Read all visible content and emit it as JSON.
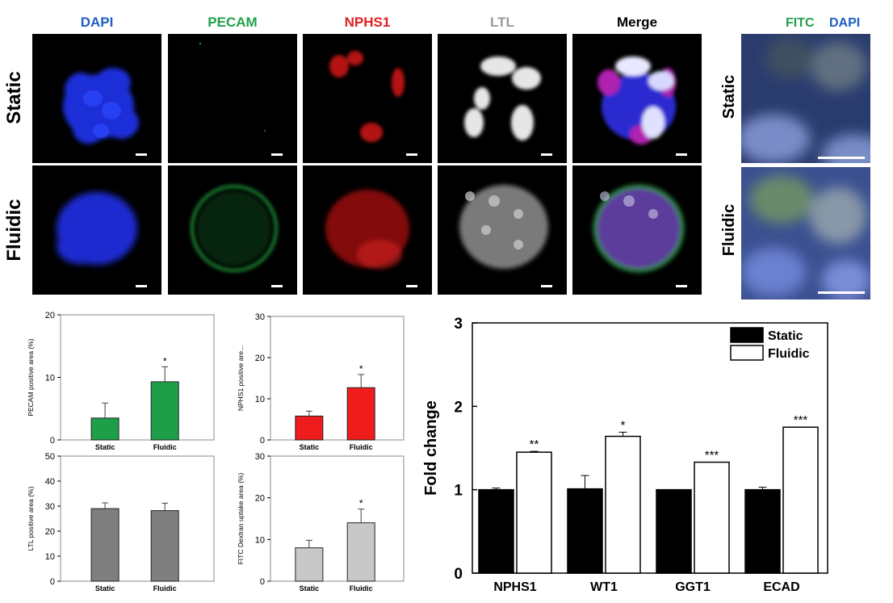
{
  "micrographs": {
    "columns": [
      {
        "label": "DAPI",
        "color": "#1f5fbf"
      },
      {
        "label": "PECAM",
        "color": "#22a04a"
      },
      {
        "label": "NPHS1",
        "color": "#e02020"
      },
      {
        "label": "LTL",
        "color": "#9a9a9a"
      },
      {
        "label": "Merge",
        "color": "#000000"
      }
    ],
    "rows": [
      "Static",
      "Fluidic"
    ],
    "fitc": {
      "label_fitc": "FITC",
      "label_dapi": "DAPI",
      "fitc_color": "#22a04a",
      "dapi_color": "#1f5fbf",
      "rows": [
        "Static",
        "Fluidic"
      ]
    }
  },
  "chart_data": [
    {
      "type": "bar",
      "categories": [
        "Static",
        "Fluidic"
      ],
      "values": [
        3.5,
        9.3
      ],
      "errors": [
        2.4,
        2.4
      ],
      "significance": [
        "",
        "*"
      ],
      "ylabel": "PECAM positive area (%)",
      "ylim": [
        0,
        20
      ],
      "yticks": [
        0,
        10,
        20
      ],
      "color": "#1f9e4a"
    },
    {
      "type": "bar",
      "categories": [
        "Static",
        "Fluidic"
      ],
      "values": [
        5.8,
        12.7
      ],
      "errors": [
        1.2,
        3.2
      ],
      "significance": [
        "",
        "*"
      ],
      "ylabel": "NPHS1 positive are...",
      "ylim": [
        0,
        30
      ],
      "yticks": [
        0,
        10,
        20,
        30
      ],
      "color": "#ee1c1c"
    },
    {
      "type": "bar",
      "categories": [
        "Static",
        "Fluidic"
      ],
      "values": [
        29,
        28.2
      ],
      "errors": [
        2.3,
        3.0
      ],
      "significance": [
        "",
        ""
      ],
      "ylabel": "LTL positive area (%)",
      "ylim": [
        0,
        50
      ],
      "yticks": [
        0,
        10,
        20,
        30,
        40,
        50
      ],
      "color": "#7f7f7f"
    },
    {
      "type": "bar",
      "categories": [
        "Static",
        "Fluidic"
      ],
      "values": [
        8.0,
        14.0
      ],
      "errors": [
        1.8,
        3.3
      ],
      "significance": [
        "",
        "*"
      ],
      "ylabel": "FITC Dextran uptake area (%)",
      "ylim": [
        0,
        30
      ],
      "yticks": [
        0,
        10,
        20,
        30
      ],
      "color": "#c8c8c8"
    },
    {
      "type": "bar",
      "categories": [
        "NPHS1",
        "WT1",
        "GGT1",
        "ECAD"
      ],
      "series": [
        {
          "name": "Static",
          "values": [
            1.0,
            1.01,
            1.0,
            1.0
          ],
          "errors": [
            0.02,
            0.16,
            0.0,
            0.03
          ],
          "color": "#000000"
        },
        {
          "name": "Fluidic",
          "values": [
            1.45,
            1.64,
            1.33,
            1.75
          ],
          "errors": [
            0.01,
            0.05,
            0.0,
            0.0
          ],
          "color": "#ffffff"
        }
      ],
      "significance": [
        "**",
        "*",
        "***",
        "***"
      ],
      "ylabel": "Fold change",
      "ylim": [
        0,
        3
      ],
      "yticks": [
        0,
        1,
        2,
        3
      ],
      "legend": "top-right"
    }
  ]
}
